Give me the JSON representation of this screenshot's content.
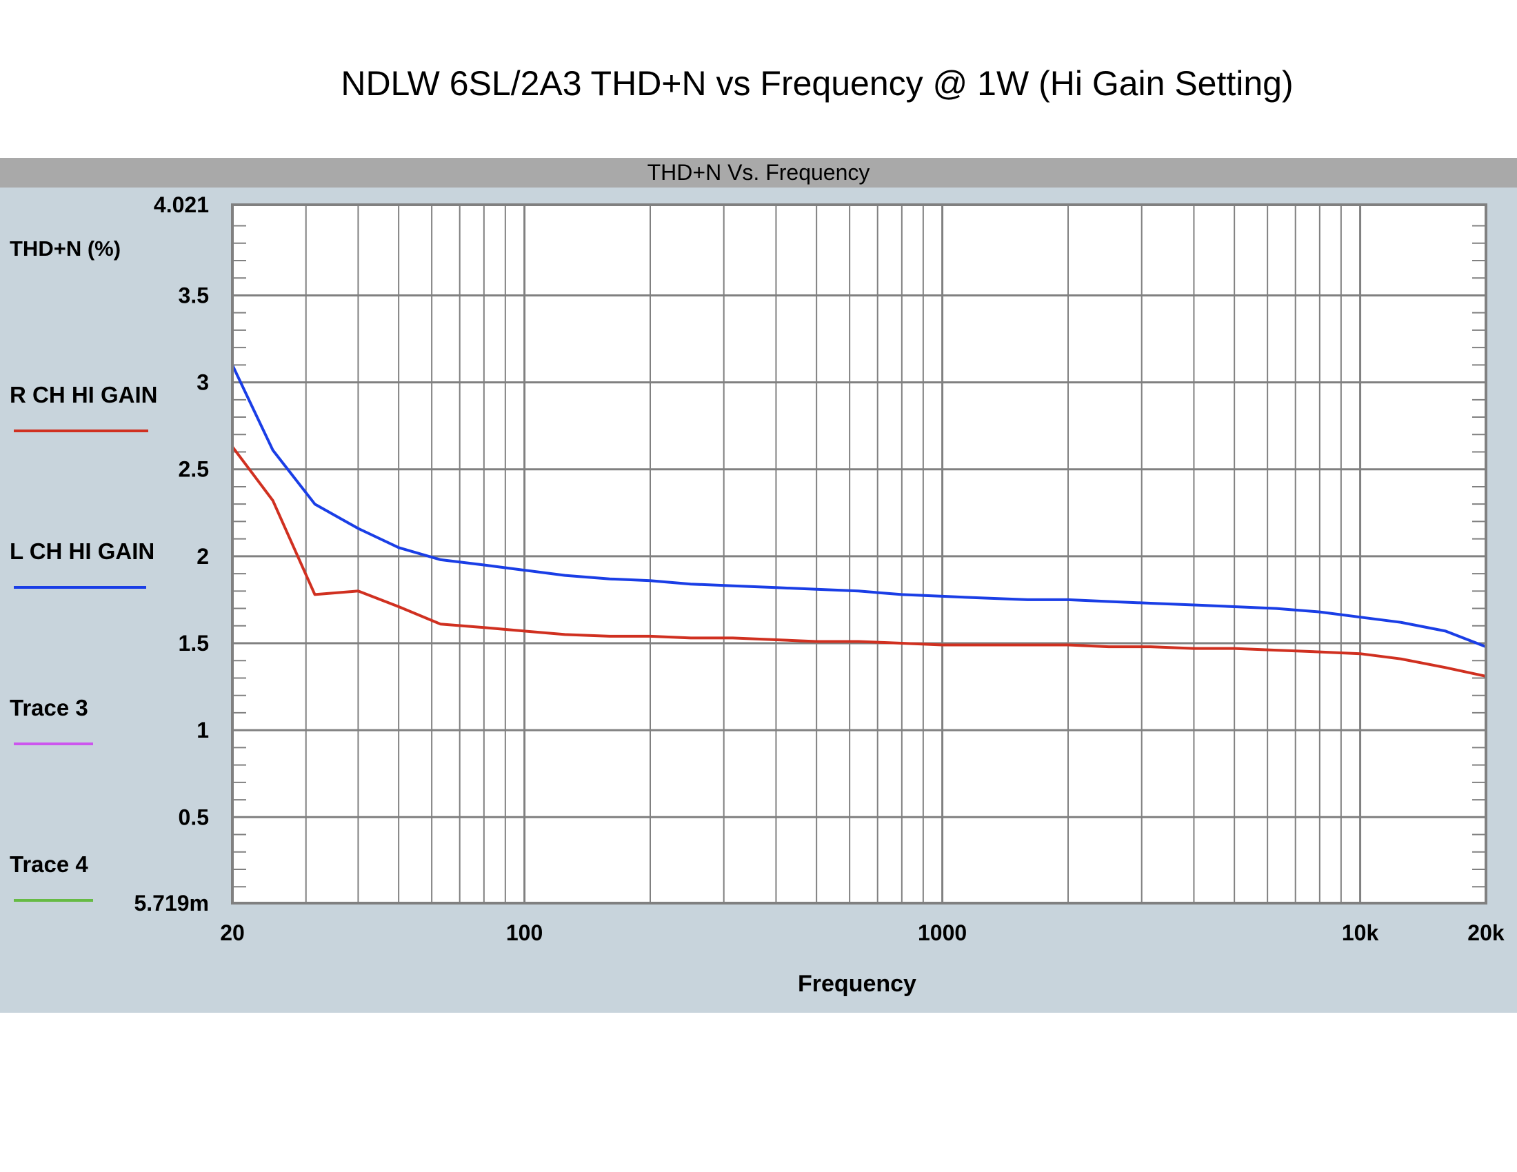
{
  "page": {
    "title": "NDLW 6SL/2A3 THD+N vs Frequency @ 1W (Hi Gain Setting)"
  },
  "panel": {
    "header": "THD+N Vs. Frequency",
    "background": "#c8d4dc",
    "header_background": "#a9a9a9"
  },
  "chart_data": {
    "type": "line",
    "title": "THD+N Vs. Frequency",
    "xlabel": "Frequency",
    "ylabel": "THD+N (%)",
    "x_scale": "log",
    "xlim": [
      20,
      20000
    ],
    "ylim": [
      0.005719,
      4.021
    ],
    "grid": true,
    "legend_position": "left",
    "x_ticks": [
      {
        "value": 20,
        "label": "20"
      },
      {
        "value": 100,
        "label": "100"
      },
      {
        "value": 1000,
        "label": "1000"
      },
      {
        "value": 10000,
        "label": "10k"
      },
      {
        "value": 20000,
        "label": "20k"
      }
    ],
    "y_ticks": [
      {
        "value": 0.005719,
        "label": "5.719m"
      },
      {
        "value": 0.5,
        "label": "0.5"
      },
      {
        "value": 1,
        "label": "1"
      },
      {
        "value": 1.5,
        "label": "1.5"
      },
      {
        "value": 2,
        "label": "2"
      },
      {
        "value": 2.5,
        "label": "2.5"
      },
      {
        "value": 3,
        "label": "3"
      },
      {
        "value": 3.5,
        "label": "3.5"
      },
      {
        "value": 4.021,
        "label": "4.021"
      }
    ],
    "series": [
      {
        "name": "R CH HI GAIN",
        "color": "#d03020",
        "x": [
          20,
          25,
          31.5,
          40,
          50,
          63,
          80,
          100,
          125,
          160,
          200,
          250,
          315,
          400,
          500,
          630,
          800,
          1000,
          1250,
          1600,
          2000,
          2500,
          3150,
          4000,
          5000,
          6300,
          8000,
          10000,
          12500,
          16000,
          20000
        ],
        "values": [
          2.63,
          2.32,
          1.78,
          1.8,
          1.71,
          1.61,
          1.59,
          1.57,
          1.55,
          1.54,
          1.54,
          1.53,
          1.53,
          1.52,
          1.51,
          1.51,
          1.5,
          1.49,
          1.49,
          1.49,
          1.49,
          1.48,
          1.48,
          1.47,
          1.47,
          1.46,
          1.45,
          1.44,
          1.41,
          1.36,
          1.31
        ]
      },
      {
        "name": "L CH HI GAIN",
        "color": "#1a3ee6",
        "x": [
          20,
          25,
          31.5,
          40,
          50,
          63,
          80,
          100,
          125,
          160,
          200,
          250,
          315,
          400,
          500,
          630,
          800,
          1000,
          1250,
          1600,
          2000,
          2500,
          3150,
          4000,
          5000,
          6300,
          8000,
          10000,
          12500,
          16000,
          20000
        ],
        "values": [
          3.1,
          2.61,
          2.3,
          2.16,
          2.05,
          1.98,
          1.95,
          1.92,
          1.89,
          1.87,
          1.86,
          1.84,
          1.83,
          1.82,
          1.81,
          1.8,
          1.78,
          1.77,
          1.76,
          1.75,
          1.75,
          1.74,
          1.73,
          1.72,
          1.71,
          1.7,
          1.68,
          1.65,
          1.62,
          1.57,
          1.48
        ]
      },
      {
        "name": "Trace 3",
        "color": "#cc55ee",
        "x": [],
        "values": []
      },
      {
        "name": "Trace 4",
        "color": "#66bb44",
        "x": [],
        "values": []
      }
    ]
  }
}
